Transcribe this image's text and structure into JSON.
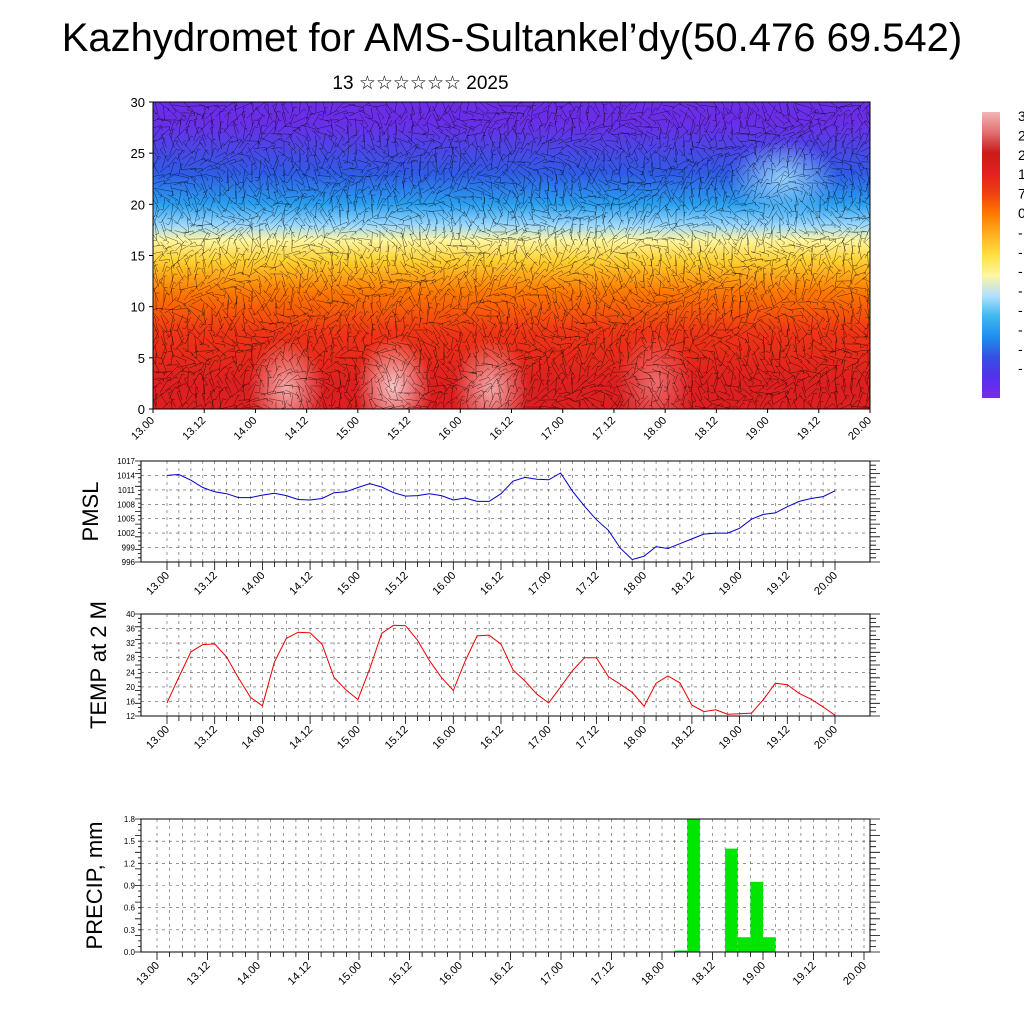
{
  "title": "Kazhydromet for AMS-Sultankel’dy(50.476 69.542)",
  "subtitle": "13 ☆☆☆☆☆☆ 2025",
  "time_ticks": [
    "13.00",
    "13.12",
    "14.00",
    "14.12",
    "15.00",
    "15.12",
    "16.00",
    "16.12",
    "17.00",
    "17.12",
    "18.00",
    "18.12",
    "19.00",
    "19.12",
    "20.00"
  ],
  "colorbar": {
    "labels": [
      "3",
      "2",
      "2",
      "1",
      "7",
      "0",
      "-",
      "-",
      "-",
      "-",
      "-",
      "-",
      "-",
      "-"
    ],
    "colors_top_to_bottom": [
      "#f4b6b6",
      "#e07070",
      "#cc1a1a",
      "#e32020",
      "#f04010",
      "#ff7a00",
      "#ffb020",
      "#ffe040",
      "#fff6a0",
      "#b0e0ff",
      "#3fb8ee",
      "#1f8ef0",
      "#3452e0",
      "#5430ee",
      "#7a2ae8"
    ]
  },
  "chart_data": [
    {
      "type": "heatmap",
      "title": "",
      "xlabel": "",
      "ylabel": "",
      "ylim": [
        0,
        30
      ],
      "yticks": [
        0,
        5,
        10,
        15,
        20,
        25,
        30
      ],
      "description_values": "temperature-like field with wind barbs; warm (red) near surface, cold (violet) above 20",
      "bands": [
        {
          "y_from": 0,
          "y_to": 5,
          "color": "#dd1f1f"
        },
        {
          "y_from": 5,
          "y_to": 10,
          "color": "#ef3515"
        },
        {
          "y_from": 10,
          "y_to": 13,
          "color": "#ff7a00"
        },
        {
          "y_from": 13,
          "y_to": 16,
          "color": "#ffd030"
        },
        {
          "y_from": 16,
          "y_to": 17,
          "color": "#fff6a0"
        },
        {
          "y_from": 17,
          "y_to": 19,
          "color": "#9ad8ff"
        },
        {
          "y_from": 19,
          "y_to": 21,
          "color": "#2aa0f0"
        },
        {
          "y_from": 21,
          "y_to": 25,
          "color": "#2f5ce6"
        },
        {
          "y_from": 25,
          "y_to": 31,
          "color": "#6a2ee8"
        }
      ],
      "warm_cells": [
        {
          "x": 2.6,
          "y": 2.0,
          "color": "#f7b0b0"
        },
        {
          "x": 4.7,
          "y": 2.2,
          "color": "#fbd0d0"
        },
        {
          "x": 6.6,
          "y": 2.0,
          "color": "#f5b0b0"
        },
        {
          "x": 9.8,
          "y": 2.6,
          "color": "#f07070"
        }
      ],
      "cold_cell": {
        "x": 12.3,
        "y": 22.5,
        "color": "#9ad8ff"
      }
    },
    {
      "type": "line",
      "ylabel": "PMSL",
      "ylim": [
        996,
        1017
      ],
      "yticks": [
        996,
        999,
        1002,
        1005,
        1008,
        1011,
        1014,
        1017
      ],
      "series": [
        {
          "color": "#0000cc",
          "values": [
            1014.0,
            1014.2,
            1013.0,
            1011.5,
            1010.6,
            1010.2,
            1009.4,
            1009.4,
            1009.9,
            1010.3,
            1009.8,
            1009.0,
            1008.9,
            1009.2,
            1010.4,
            1010.6,
            1011.5,
            1012.3,
            1011.6,
            1010.4,
            1009.7,
            1009.8,
            1010.2,
            1009.8,
            1008.9,
            1009.3,
            1008.6,
            1008.6,
            1010.2,
            1012.8,
            1013.6,
            1013.2,
            1013.1,
            1014.5,
            1010.7,
            1007.6,
            1004.8,
            1002.6,
            998.9,
            996.5,
            997.2,
            999.2,
            998.8,
            999.8,
            1000.8,
            1001.8,
            1002.0,
            1002.0,
            1003.0,
            1004.9,
            1005.9,
            1006.2,
            1007.5,
            1008.6,
            1009.2,
            1009.6,
            1010.8
          ]
        }
      ]
    },
    {
      "type": "line",
      "ylabel": "TEMP at 2 M",
      "ylim": [
        12,
        40
      ],
      "yticks": [
        12,
        16,
        20,
        24,
        28,
        32,
        36,
        40
      ],
      "series": [
        {
          "color": "#ee0000",
          "values": [
            15.6,
            22.7,
            29.6,
            31.6,
            31.8,
            28.2,
            22.4,
            17.1,
            14.8,
            26.8,
            33.3,
            35.0,
            34.8,
            31.7,
            22.6,
            19.2,
            16.5,
            25.0,
            34.7,
            36.9,
            36.8,
            32.8,
            27.2,
            22.6,
            19.0,
            27.1,
            34.0,
            34.2,
            31.7,
            24.7,
            21.6,
            18.0,
            15.6,
            20.0,
            24.5,
            28.0,
            28.0,
            22.8,
            20.7,
            18.5,
            14.7,
            21.0,
            23.0,
            21.1,
            15.0,
            13.2,
            13.7,
            12.5,
            12.6,
            12.8,
            16.5,
            21.0,
            20.6,
            18.2,
            16.6,
            14.5,
            12.2
          ]
        }
      ]
    },
    {
      "type": "bar",
      "ylabel": "PRECIP, mm",
      "ylim": [
        0,
        1.8
      ],
      "yticks": [
        "0.0",
        "0.3",
        "0.6",
        "0.9",
        "1.2",
        "1.5",
        "1.8"
      ],
      "color": "#00e600",
      "bars": [
        {
          "x_hours": 123,
          "width_hours": 3,
          "value": 0.02
        },
        {
          "x_hours": 126,
          "width_hours": 3,
          "value": 1.8
        },
        {
          "x_hours": 135,
          "width_hours": 3,
          "value": 1.4
        },
        {
          "x_hours": 138,
          "width_hours": 3,
          "value": 0.2
        },
        {
          "x_hours": 141,
          "width_hours": 3,
          "value": 0.95
        },
        {
          "x_hours": 144,
          "width_hours": 3,
          "value": 0.2
        }
      ]
    }
  ]
}
